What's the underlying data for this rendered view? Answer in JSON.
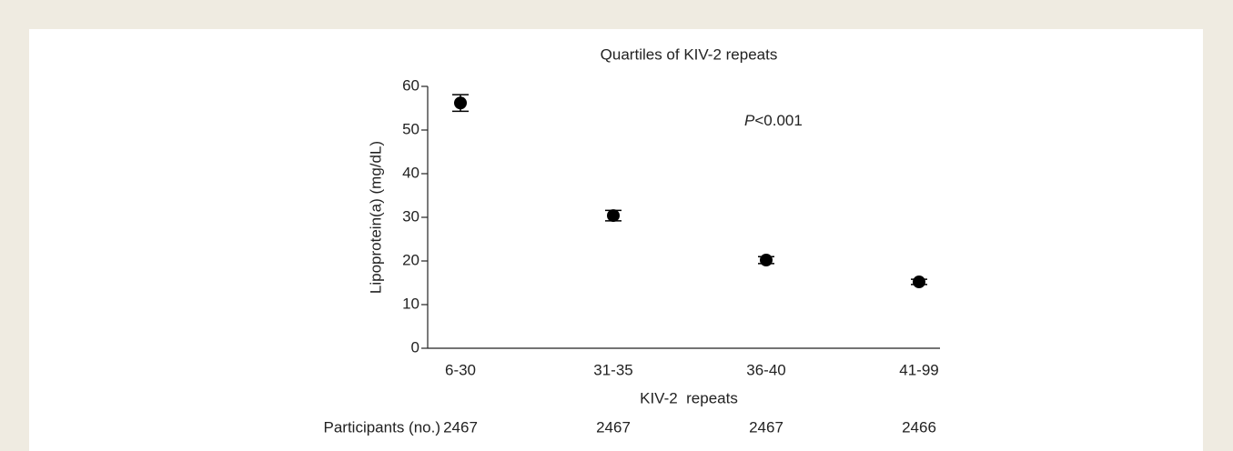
{
  "chart_data": {
    "type": "scatter",
    "title": "Quartiles of KIV-2 repeats",
    "y_label": "Lipoprotein(a) (mg/dL)",
    "x_label": "KIV-2  repeats",
    "annotation": "P<0.001",
    "categories": [
      "6-30",
      "31-35",
      "36-40",
      "41-99"
    ],
    "values": [
      56.2,
      30.4,
      20.2,
      15.2
    ],
    "errors": [
      1.9,
      1.2,
      0.8,
      0.6
    ],
    "color": "#000000",
    "ylim": [
      0,
      60
    ],
    "yticks": [
      0,
      10,
      20,
      30,
      40,
      50,
      60
    ],
    "participants_label": "Participants (no.)",
    "participants": [
      2467,
      2467,
      2467,
      2466
    ]
  }
}
